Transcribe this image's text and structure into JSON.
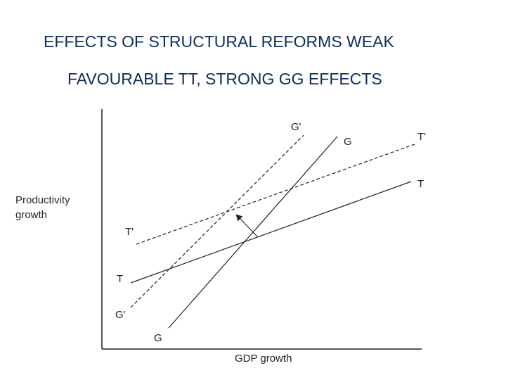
{
  "title_line1": "EFFECTS OF STRUCTURAL REFORMS WEAK",
  "title_line2": "FAVOURABLE TT, STRONG GG EFFECTS",
  "diagram": {
    "y_axis_label_line1": "Productivity",
    "y_axis_label_line2": "growth",
    "x_axis_label": "GDP growth",
    "curves": {
      "t_prime": {
        "start": "T'",
        "end": "T'"
      },
      "t": {
        "start": "T",
        "end": "T"
      },
      "g_prime": {
        "start": "G'",
        "end": "G'"
      },
      "g": {
        "start": "G",
        "end": "G"
      }
    },
    "colors": {
      "line": "#222222",
      "title": "#0e2e57"
    }
  }
}
